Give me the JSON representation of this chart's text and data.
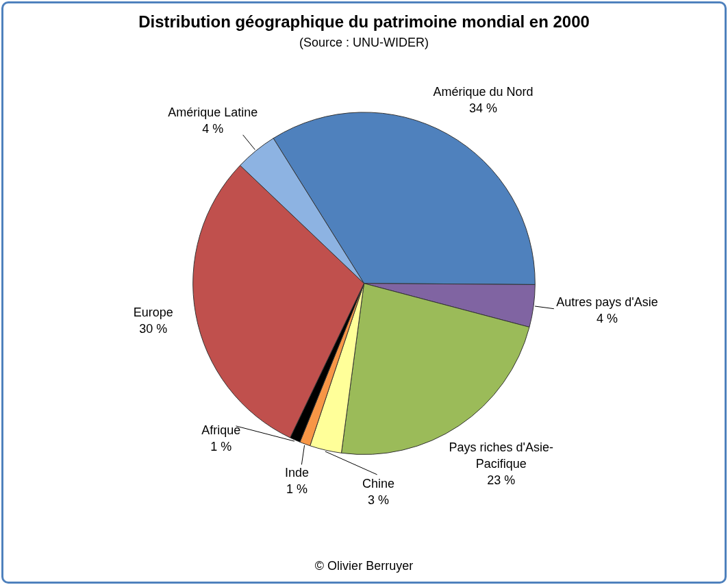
{
  "chart_data": {
    "type": "pie",
    "title": "Distribution géographique du patrimoine mondial en 2000",
    "subtitle": "(Source : UNU-WIDER)",
    "categories": [
      "Amérique du Nord",
      "Autres pays d'Asie",
      "Pays riches d'Asie-Pacifique",
      "Chine",
      "Inde",
      "Afrique",
      "Europe",
      "Amérique Latine"
    ],
    "values": [
      34,
      4,
      23,
      3,
      1,
      1,
      30,
      4
    ],
    "colors": [
      "#4f81bd",
      "#8064a2",
      "#9bbb59",
      "#ffff99",
      "#f79646",
      "#000000",
      "#c0504d",
      "#8db3e2"
    ],
    "value_labels": [
      "34 %",
      "4 %",
      "23 %",
      "3 %",
      "1 %",
      "1 %",
      "30 %",
      "4 %"
    ],
    "annotations": [
      "© Olivier Berruyer"
    ]
  }
}
